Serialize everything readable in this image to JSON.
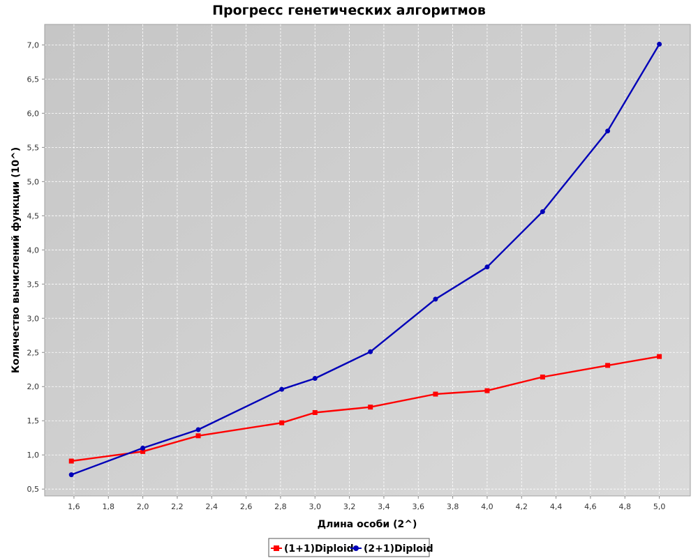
{
  "colors": {
    "series_1": "#ff0000",
    "series_2": "#0000b8",
    "plot_background": "#cfcfcf",
    "grid": "#ffffff"
  },
  "chart_data": {
    "type": "line",
    "title": "Прогресс генетических алгоритмов",
    "xlabel": "Длина особи (2^)",
    "ylabel": "Количество вычислений функции (10^)",
    "xlim": [
      1.43,
      5.18
    ],
    "ylim": [
      0.4,
      7.3
    ],
    "xticks": [
      1.6,
      1.8,
      2.0,
      2.2,
      2.4,
      2.6,
      2.8,
      3.0,
      3.2,
      3.4,
      3.6,
      3.8,
      4.0,
      4.2,
      4.4,
      4.6,
      4.8,
      5.0
    ],
    "xtick_labels": [
      "1,6",
      "1,8",
      "2,0",
      "2,2",
      "2,4",
      "2,6",
      "2,8",
      "3,0",
      "3,2",
      "3,4",
      "3,6",
      "3,8",
      "4,0",
      "4,2",
      "4,4",
      "4,6",
      "4,8",
      "5,0"
    ],
    "yticks": [
      0.5,
      1.0,
      1.5,
      2.0,
      2.5,
      3.0,
      3.5,
      4.0,
      4.5,
      5.0,
      5.5,
      6.0,
      6.5,
      7.0
    ],
    "ytick_labels": [
      "0,5",
      "1,0",
      "1,5",
      "2,0",
      "2,5",
      "3,0",
      "3,5",
      "4,0",
      "4,5",
      "5,0",
      "5,5",
      "6,0",
      "6,5",
      "7,0"
    ],
    "grid": true,
    "legend_position": "bottom-center",
    "x": [
      1.585,
      2.0,
      2.322,
      2.807,
      3.0,
      3.322,
      3.7,
      4.0,
      4.322,
      4.7,
      5.0
    ],
    "series": [
      {
        "name": "(1+1)Diploid",
        "marker": "square",
        "color_key": "series_1",
        "values": [
          0.91,
          1.05,
          1.28,
          1.47,
          1.62,
          1.7,
          1.89,
          1.94,
          2.14,
          2.31,
          2.44
        ]
      },
      {
        "name": "(2+1)Diploid",
        "marker": "circle",
        "color_key": "series_2",
        "values": [
          0.71,
          1.1,
          1.37,
          1.96,
          2.12,
          2.51,
          3.28,
          3.75,
          4.56,
          5.74,
          7.01
        ]
      }
    ]
  }
}
